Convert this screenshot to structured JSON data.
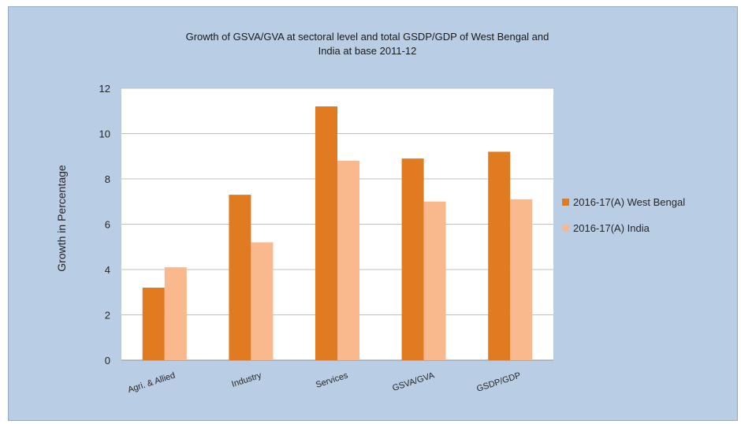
{
  "chart_data": {
    "type": "bar",
    "title_lines": [
      "Growth of GSVA/GVA at sectoral level and total GSDP/GDP of West Bengal and",
      "India at base 2011-12"
    ],
    "xlabel": "",
    "ylabel": "Growth in Percentage",
    "ylim": [
      0,
      12
    ],
    "yticks": [
      0,
      2,
      4,
      6,
      8,
      10,
      12
    ],
    "ytick_labels": [
      "0",
      "2",
      "4",
      "6",
      "8",
      "10",
      "12"
    ],
    "grid": true,
    "legend_position": "right",
    "categories": [
      "Agri. & Allied",
      "Industry",
      "Services",
      "GSVA/GVA",
      "GSDP/GDP"
    ],
    "series": [
      {
        "name": "2016-17(A) West Bengal",
        "color": "#e07b22",
        "values": [
          3.2,
          7.3,
          11.2,
          8.9,
          9.2
        ]
      },
      {
        "name": "2016-17(A) India",
        "color": "#f9b98d",
        "values": [
          4.1,
          5.2,
          8.8,
          7.0,
          7.1
        ]
      }
    ],
    "plot_background": "#ffffff",
    "chart_background": "#b9cde5"
  }
}
